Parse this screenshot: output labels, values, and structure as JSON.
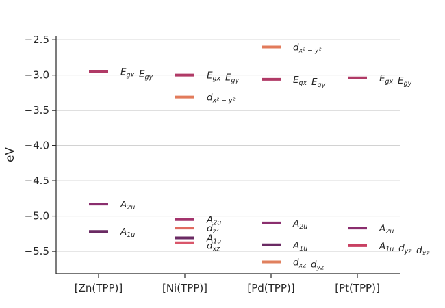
{
  "chart_data": {
    "type": "energy-level",
    "categories": [
      "[Zn(TPP)]",
      "[Ni(TPP)]",
      "[Pd(TPP)]",
      "[Pt(TPP)]"
    ],
    "ylabel": "eV",
    "ylim": [
      -5.82,
      -2.44
    ],
    "yticks": [
      -2.5,
      -3.0,
      -3.5,
      -4.0,
      -4.5,
      -5.0,
      -5.5
    ],
    "ytick_labels": [
      "−2.5",
      "−3.0",
      "−3.5",
      "−4.0",
      "−4.5",
      "−5.0",
      "−5.5"
    ],
    "grid": "horizontal",
    "colors": {
      "Egx_Egy": "#b03a66",
      "dx2y2": "#e27b5b",
      "A2u": "#8a2e6e",
      "A1u": "#6a2a63",
      "dz2": "#e06a60",
      "dxz": "#d9566a",
      "dxz_dyz": "#c84062"
    },
    "levels": [
      {
        "category": 0,
        "energy": -2.95,
        "color": "#b03a66",
        "label": [
          [
            "E",
            "gx"
          ],
          [
            "E",
            "gy"
          ]
        ]
      },
      {
        "category": 0,
        "energy": -4.83,
        "color": "#8a2e6e",
        "label": [
          [
            "A",
            "2u"
          ]
        ]
      },
      {
        "category": 0,
        "energy": -5.22,
        "color": "#6a2a63",
        "label": [
          [
            "A",
            "1u"
          ]
        ]
      },
      {
        "category": 1,
        "energy": -3.0,
        "color": "#b03a66",
        "label": [
          [
            "E",
            "gx"
          ],
          [
            "E",
            "gy"
          ]
        ]
      },
      {
        "category": 1,
        "energy": -3.31,
        "color": "#e27b5b",
        "label": [
          [
            "d",
            "x² − y²"
          ]
        ]
      },
      {
        "category": 1,
        "energy": -5.05,
        "color": "#a3336c",
        "label": [
          [
            "A",
            "2u"
          ]
        ]
      },
      {
        "category": 1,
        "energy": -5.17,
        "color": "#e06a60",
        "label": [
          [
            "d",
            "z²"
          ]
        ]
      },
      {
        "category": 1,
        "energy": -5.31,
        "color": "#6a2a63",
        "label": [
          [
            "A",
            "1u"
          ]
        ]
      },
      {
        "category": 1,
        "energy": -5.38,
        "color": "#d9566a",
        "label": [
          [
            "d",
            "xz"
          ]
        ]
      },
      {
        "category": 2,
        "energy": -2.6,
        "color": "#e27b5b",
        "label": [
          [
            "d",
            "x² − y²"
          ]
        ]
      },
      {
        "category": 2,
        "energy": -3.06,
        "color": "#b03a66",
        "label": [
          [
            "E",
            "gx"
          ],
          [
            "E",
            "gy"
          ]
        ]
      },
      {
        "category": 2,
        "energy": -5.1,
        "color": "#8a2e6e",
        "label": [
          [
            "A",
            "2u"
          ]
        ]
      },
      {
        "category": 2,
        "energy": -5.41,
        "color": "#6a2a63",
        "label": [
          [
            "A",
            "1u"
          ]
        ]
      },
      {
        "category": 2,
        "energy": -5.65,
        "color": "#e0805e",
        "label": [
          [
            "d",
            "xz"
          ],
          [
            "d",
            "yz"
          ]
        ]
      },
      {
        "category": 3,
        "energy": -3.04,
        "color": "#b03a66",
        "label": [
          [
            "E",
            "gx"
          ],
          [
            "E",
            "gy"
          ]
        ]
      },
      {
        "category": 3,
        "energy": -5.17,
        "color": "#8a2e6e",
        "label": [
          [
            "A",
            "2u"
          ]
        ]
      },
      {
        "category": 3,
        "energy": -5.42,
        "color": "#c84062",
        "label": [
          [
            "A",
            "1u"
          ],
          [
            "d",
            "yz"
          ],
          [
            "d",
            "xz"
          ]
        ]
      }
    ]
  }
}
